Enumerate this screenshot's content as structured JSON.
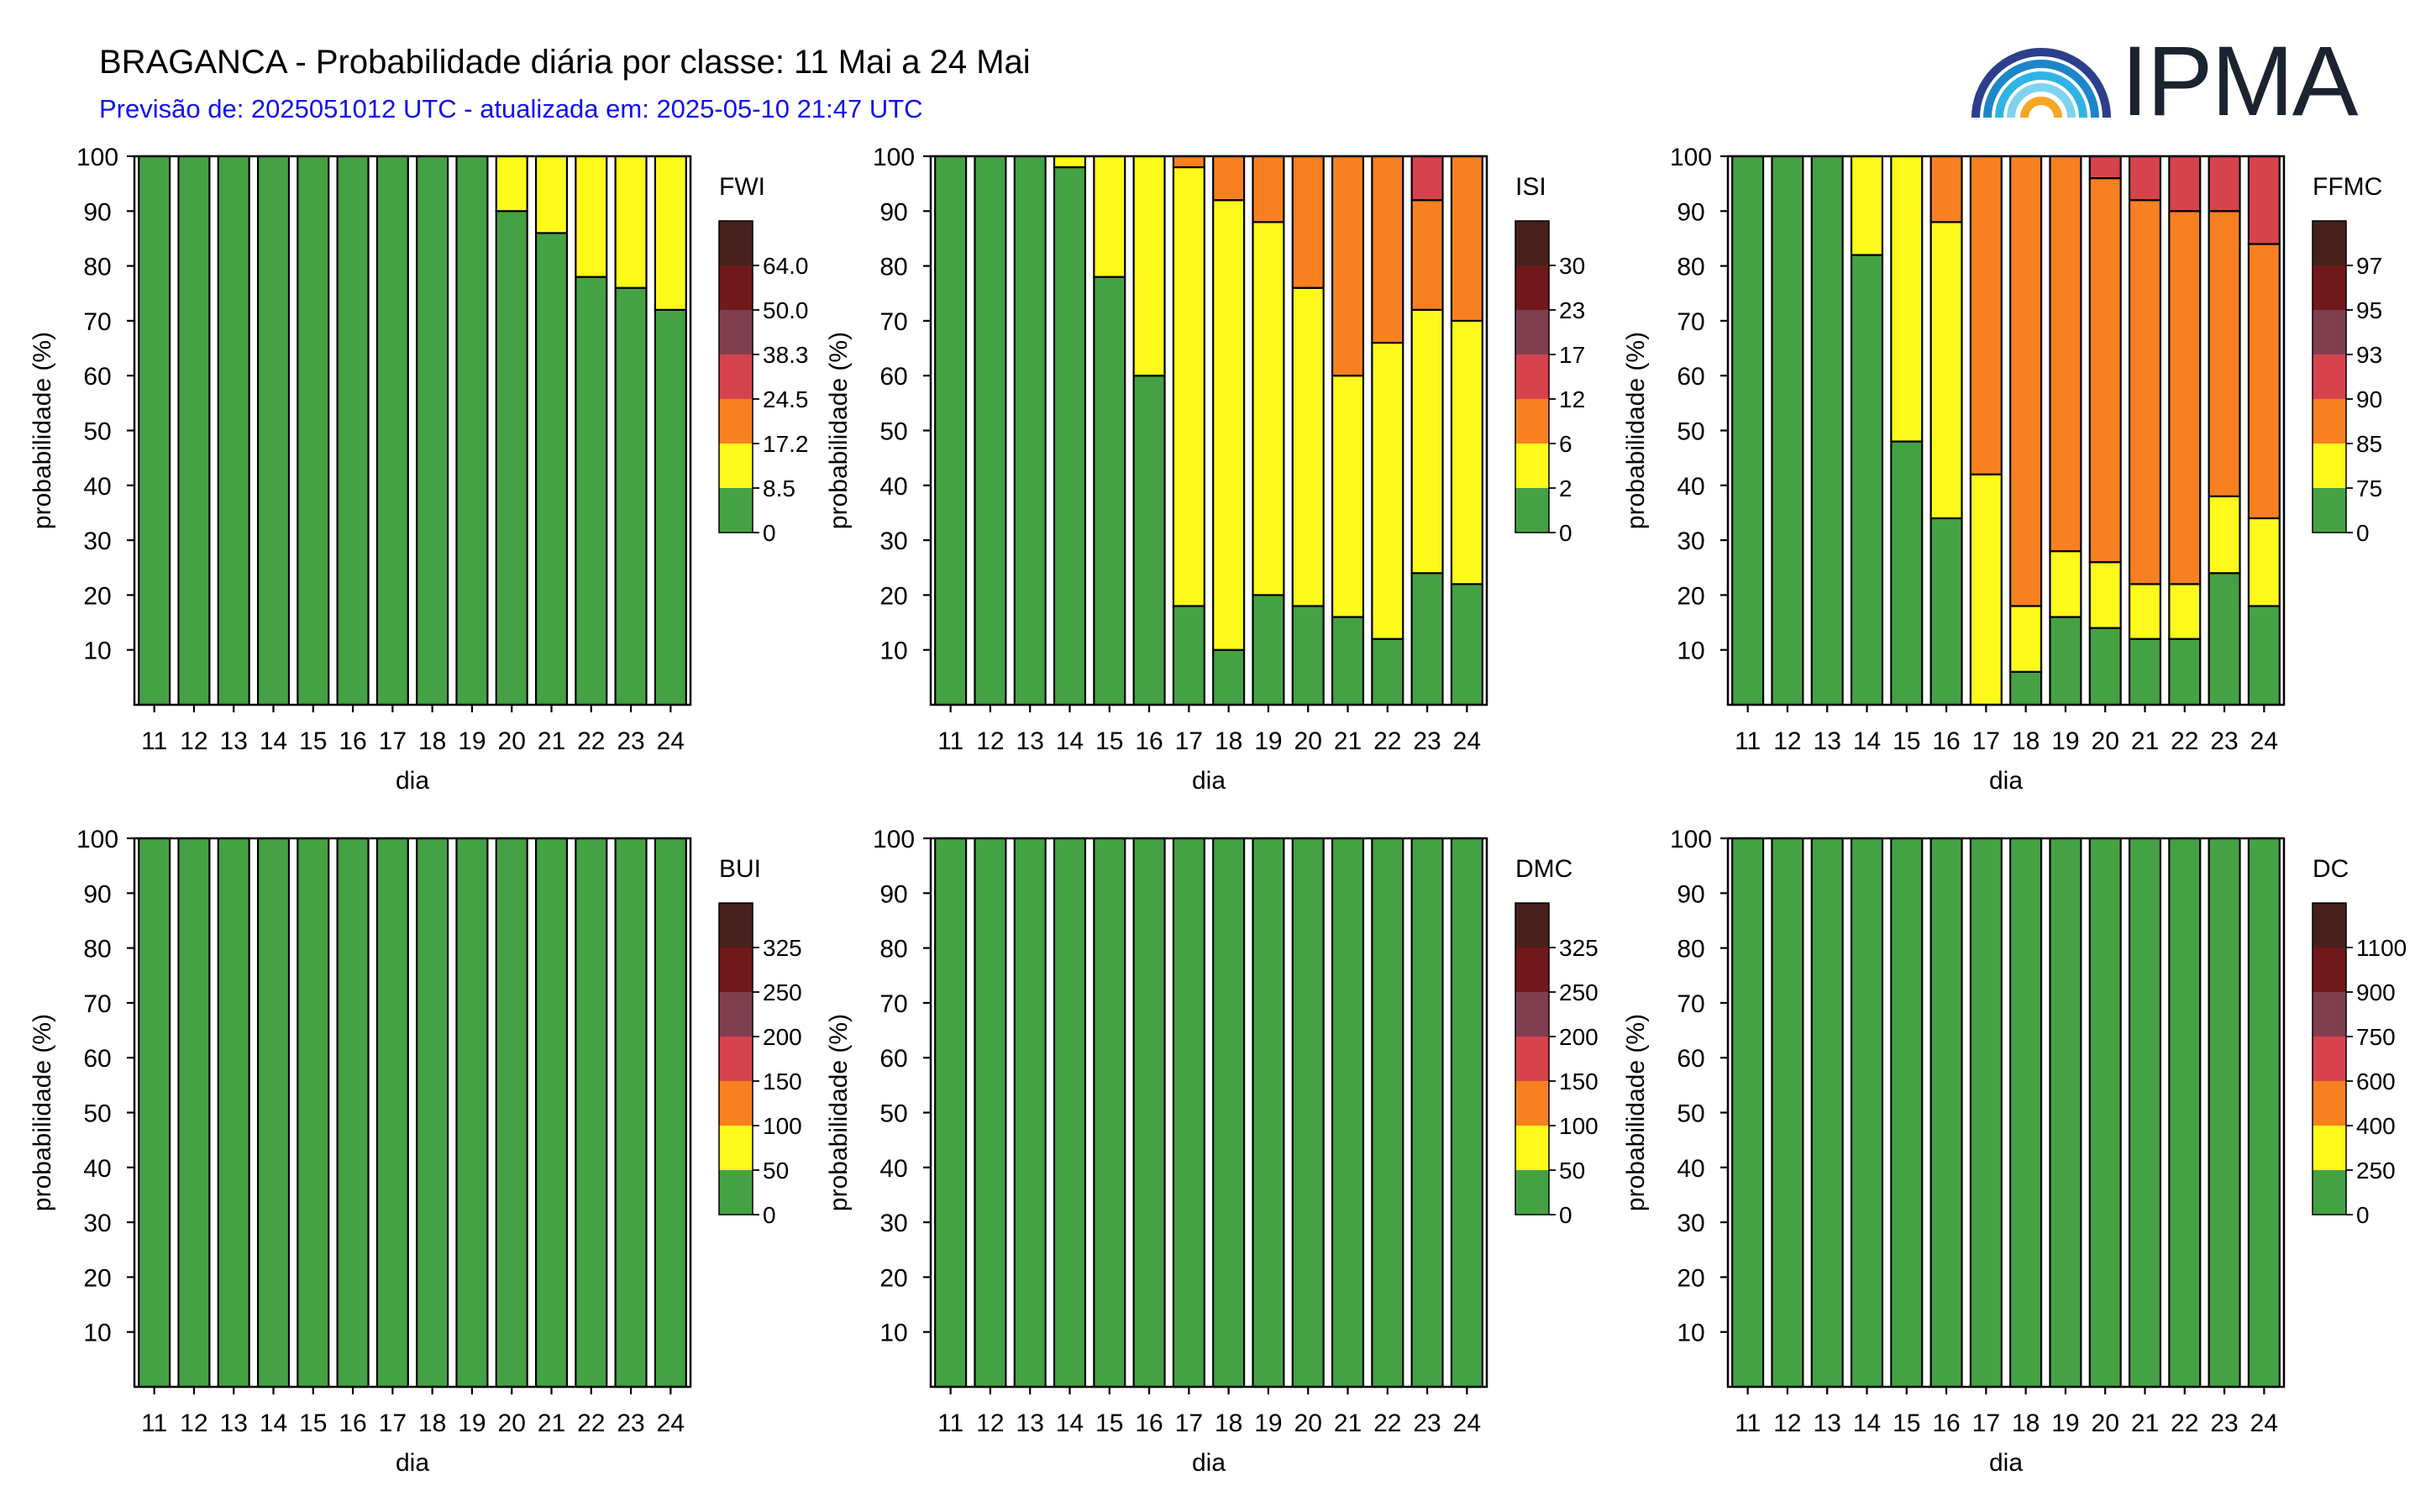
{
  "header": {
    "title": "BRAGANCA - Probabilidade diária por classe: 11 Mai a 24 Mai",
    "subtitle": "Previsão de: 2025051012 UTC - atualizada em: 2025-05-10 21:47 UTC",
    "logo_text": "IPMA"
  },
  "palette": [
    "#44a244",
    "#fdf91b",
    "#f88020",
    "#d6434c",
    "#803f4f",
    "#71181a",
    "#47201c"
  ],
  "chart_data": [
    {
      "type": "bar",
      "index": "FWI",
      "title": "",
      "xlabel": "dia",
      "ylabel": "probabilidade (%)",
      "ylim": [
        0,
        100
      ],
      "yticks": [
        10,
        20,
        30,
        40,
        50,
        60,
        70,
        80,
        90,
        100
      ],
      "categories": [
        "11",
        "12",
        "13",
        "14",
        "15",
        "16",
        "17",
        "18",
        "19",
        "20",
        "21",
        "22",
        "23",
        "24"
      ],
      "legend_labels": [
        "0",
        "8.5",
        "17.2",
        "24.5",
        "38.3",
        "50.0",
        "64.0"
      ],
      "stacked": [
        [
          100,
          0,
          0,
          0,
          0,
          0,
          0
        ],
        [
          100,
          0,
          0,
          0,
          0,
          0,
          0
        ],
        [
          100,
          0,
          0,
          0,
          0,
          0,
          0
        ],
        [
          100,
          0,
          0,
          0,
          0,
          0,
          0
        ],
        [
          100,
          0,
          0,
          0,
          0,
          0,
          0
        ],
        [
          100,
          0,
          0,
          0,
          0,
          0,
          0
        ],
        [
          100,
          0,
          0,
          0,
          0,
          0,
          0
        ],
        [
          100,
          0,
          0,
          0,
          0,
          0,
          0
        ],
        [
          100,
          0,
          0,
          0,
          0,
          0,
          0
        ],
        [
          90,
          10,
          0,
          0,
          0,
          0,
          0
        ],
        [
          86,
          14,
          0,
          0,
          0,
          0,
          0
        ],
        [
          78,
          22,
          0,
          0,
          0,
          0,
          0
        ],
        [
          76,
          24,
          0,
          0,
          0,
          0,
          0
        ],
        [
          72,
          28,
          0,
          0,
          0,
          0,
          0
        ]
      ]
    },
    {
      "type": "bar",
      "index": "ISI",
      "title": "",
      "xlabel": "dia",
      "ylabel": "probabilidade (%)",
      "ylim": [
        0,
        100
      ],
      "yticks": [
        10,
        20,
        30,
        40,
        50,
        60,
        70,
        80,
        90,
        100
      ],
      "categories": [
        "11",
        "12",
        "13",
        "14",
        "15",
        "16",
        "17",
        "18",
        "19",
        "20",
        "21",
        "22",
        "23",
        "24"
      ],
      "legend_labels": [
        "0",
        "2",
        "6",
        "12",
        "17",
        "23",
        "30"
      ],
      "stacked": [
        [
          100,
          0,
          0,
          0,
          0,
          0,
          0
        ],
        [
          100,
          0,
          0,
          0,
          0,
          0,
          0
        ],
        [
          100,
          0,
          0,
          0,
          0,
          0,
          0
        ],
        [
          98,
          2,
          0,
          0,
          0,
          0,
          0
        ],
        [
          78,
          22,
          0,
          0,
          0,
          0,
          0
        ],
        [
          60,
          40,
          0,
          0,
          0,
          0,
          0
        ],
        [
          18,
          80,
          2,
          0,
          0,
          0,
          0
        ],
        [
          10,
          82,
          8,
          0,
          0,
          0,
          0
        ],
        [
          20,
          68,
          12,
          0,
          0,
          0,
          0
        ],
        [
          18,
          58,
          24,
          0,
          0,
          0,
          0
        ],
        [
          16,
          44,
          40,
          0,
          0,
          0,
          0
        ],
        [
          12,
          54,
          34,
          0,
          0,
          0,
          0
        ],
        [
          24,
          48,
          20,
          8,
          0,
          0,
          0
        ],
        [
          22,
          48,
          30,
          0,
          0,
          0,
          0
        ]
      ]
    },
    {
      "type": "bar",
      "index": "FFMC",
      "title": "",
      "xlabel": "dia",
      "ylabel": "probabilidade (%)",
      "ylim": [
        0,
        100
      ],
      "yticks": [
        10,
        20,
        30,
        40,
        50,
        60,
        70,
        80,
        90,
        100
      ],
      "categories": [
        "11",
        "12",
        "13",
        "14",
        "15",
        "16",
        "17",
        "18",
        "19",
        "20",
        "21",
        "22",
        "23",
        "24"
      ],
      "legend_labels": [
        "0",
        "75",
        "85",
        "90",
        "93",
        "95",
        "97"
      ],
      "stacked": [
        [
          100,
          0,
          0,
          0,
          0,
          0,
          0
        ],
        [
          100,
          0,
          0,
          0,
          0,
          0,
          0
        ],
        [
          100,
          0,
          0,
          0,
          0,
          0,
          0
        ],
        [
          82,
          18,
          0,
          0,
          0,
          0,
          0
        ],
        [
          48,
          52,
          0,
          0,
          0,
          0,
          0
        ],
        [
          34,
          54,
          12,
          0,
          0,
          0,
          0
        ],
        [
          0,
          42,
          58,
          0,
          0,
          0,
          0
        ],
        [
          6,
          12,
          82,
          0,
          0,
          0,
          0
        ],
        [
          16,
          12,
          72,
          0,
          0,
          0,
          0
        ],
        [
          14,
          12,
          70,
          4,
          0,
          0,
          0
        ],
        [
          12,
          10,
          70,
          8,
          0,
          0,
          0
        ],
        [
          12,
          10,
          68,
          10,
          0,
          0,
          0
        ],
        [
          24,
          14,
          52,
          10,
          0,
          0,
          0
        ],
        [
          18,
          16,
          50,
          16,
          0,
          0,
          0
        ]
      ]
    },
    {
      "type": "bar",
      "index": "BUI",
      "title": "",
      "xlabel": "dia",
      "ylabel": "probabilidade (%)",
      "ylim": [
        0,
        100
      ],
      "yticks": [
        10,
        20,
        30,
        40,
        50,
        60,
        70,
        80,
        90,
        100
      ],
      "categories": [
        "11",
        "12",
        "13",
        "14",
        "15",
        "16",
        "17",
        "18",
        "19",
        "20",
        "21",
        "22",
        "23",
        "24"
      ],
      "legend_labels": [
        "0",
        "50",
        "100",
        "150",
        "200",
        "250",
        "325"
      ],
      "stacked": [
        [
          100,
          0,
          0,
          0,
          0,
          0,
          0
        ],
        [
          100,
          0,
          0,
          0,
          0,
          0,
          0
        ],
        [
          100,
          0,
          0,
          0,
          0,
          0,
          0
        ],
        [
          100,
          0,
          0,
          0,
          0,
          0,
          0
        ],
        [
          100,
          0,
          0,
          0,
          0,
          0,
          0
        ],
        [
          100,
          0,
          0,
          0,
          0,
          0,
          0
        ],
        [
          100,
          0,
          0,
          0,
          0,
          0,
          0
        ],
        [
          100,
          0,
          0,
          0,
          0,
          0,
          0
        ],
        [
          100,
          0,
          0,
          0,
          0,
          0,
          0
        ],
        [
          100,
          0,
          0,
          0,
          0,
          0,
          0
        ],
        [
          100,
          0,
          0,
          0,
          0,
          0,
          0
        ],
        [
          100,
          0,
          0,
          0,
          0,
          0,
          0
        ],
        [
          100,
          0,
          0,
          0,
          0,
          0,
          0
        ],
        [
          100,
          0,
          0,
          0,
          0,
          0,
          0
        ]
      ]
    },
    {
      "type": "bar",
      "index": "DMC",
      "title": "",
      "xlabel": "dia",
      "ylabel": "probabilidade (%)",
      "ylim": [
        0,
        100
      ],
      "yticks": [
        10,
        20,
        30,
        40,
        50,
        60,
        70,
        80,
        90,
        100
      ],
      "categories": [
        "11",
        "12",
        "13",
        "14",
        "15",
        "16",
        "17",
        "18",
        "19",
        "20",
        "21",
        "22",
        "23",
        "24"
      ],
      "legend_labels": [
        "0",
        "50",
        "100",
        "150",
        "200",
        "250",
        "325"
      ],
      "stacked": [
        [
          100,
          0,
          0,
          0,
          0,
          0,
          0
        ],
        [
          100,
          0,
          0,
          0,
          0,
          0,
          0
        ],
        [
          100,
          0,
          0,
          0,
          0,
          0,
          0
        ],
        [
          100,
          0,
          0,
          0,
          0,
          0,
          0
        ],
        [
          100,
          0,
          0,
          0,
          0,
          0,
          0
        ],
        [
          100,
          0,
          0,
          0,
          0,
          0,
          0
        ],
        [
          100,
          0,
          0,
          0,
          0,
          0,
          0
        ],
        [
          100,
          0,
          0,
          0,
          0,
          0,
          0
        ],
        [
          100,
          0,
          0,
          0,
          0,
          0,
          0
        ],
        [
          100,
          0,
          0,
          0,
          0,
          0,
          0
        ],
        [
          100,
          0,
          0,
          0,
          0,
          0,
          0
        ],
        [
          100,
          0,
          0,
          0,
          0,
          0,
          0
        ],
        [
          100,
          0,
          0,
          0,
          0,
          0,
          0
        ],
        [
          100,
          0,
          0,
          0,
          0,
          0,
          0
        ]
      ]
    },
    {
      "type": "bar",
      "index": "DC",
      "title": "",
      "xlabel": "dia",
      "ylabel": "probabilidade (%)",
      "ylim": [
        0,
        100
      ],
      "yticks": [
        10,
        20,
        30,
        40,
        50,
        60,
        70,
        80,
        90,
        100
      ],
      "categories": [
        "11",
        "12",
        "13",
        "14",
        "15",
        "16",
        "17",
        "18",
        "19",
        "20",
        "21",
        "22",
        "23",
        "24"
      ],
      "legend_labels": [
        "0",
        "250",
        "400",
        "600",
        "750",
        "900",
        "1100"
      ],
      "stacked": [
        [
          100,
          0,
          0,
          0,
          0,
          0,
          0
        ],
        [
          100,
          0,
          0,
          0,
          0,
          0,
          0
        ],
        [
          100,
          0,
          0,
          0,
          0,
          0,
          0
        ],
        [
          100,
          0,
          0,
          0,
          0,
          0,
          0
        ],
        [
          100,
          0,
          0,
          0,
          0,
          0,
          0
        ],
        [
          100,
          0,
          0,
          0,
          0,
          0,
          0
        ],
        [
          100,
          0,
          0,
          0,
          0,
          0,
          0
        ],
        [
          100,
          0,
          0,
          0,
          0,
          0,
          0
        ],
        [
          100,
          0,
          0,
          0,
          0,
          0,
          0
        ],
        [
          100,
          0,
          0,
          0,
          0,
          0,
          0
        ],
        [
          100,
          0,
          0,
          0,
          0,
          0,
          0
        ],
        [
          100,
          0,
          0,
          0,
          0,
          0,
          0
        ],
        [
          100,
          0,
          0,
          0,
          0,
          0,
          0
        ],
        [
          100,
          0,
          0,
          0,
          0,
          0,
          0
        ]
      ]
    }
  ]
}
